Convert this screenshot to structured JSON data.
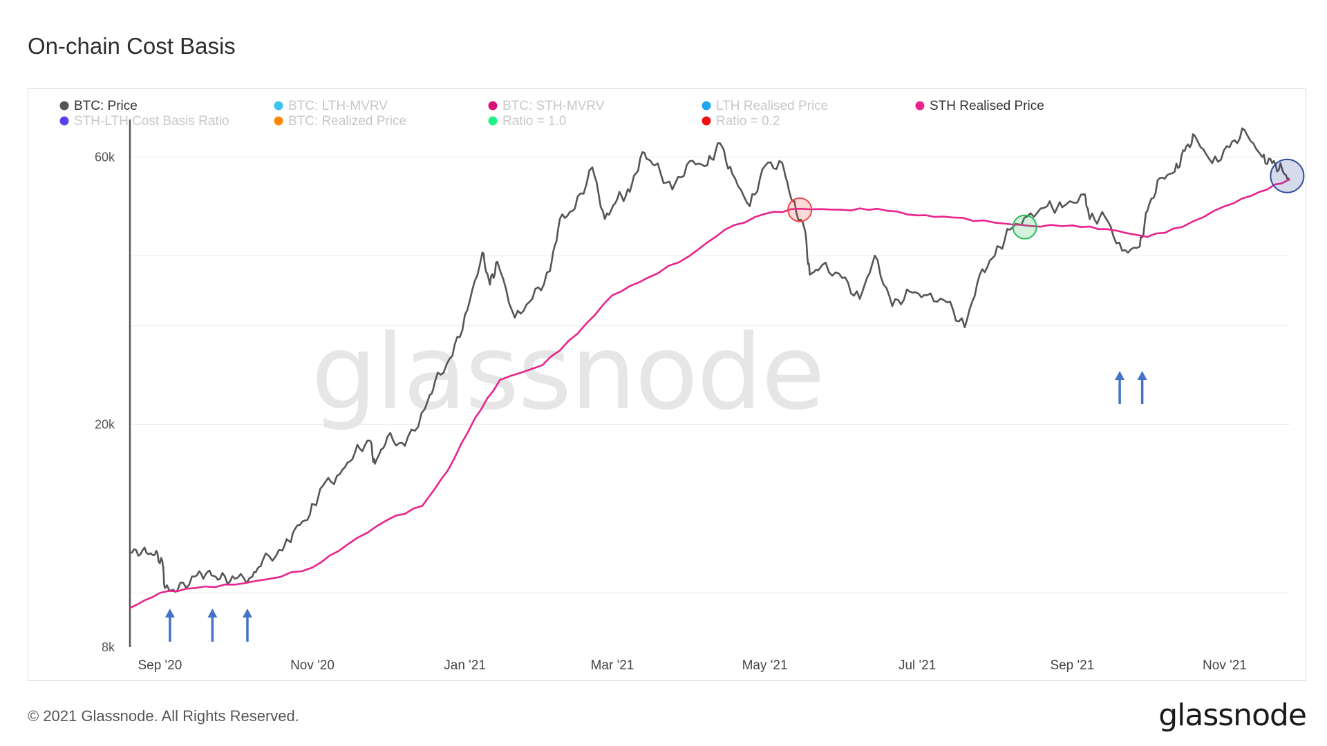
{
  "page": {
    "title": "On-chain Cost Basis",
    "copyright": "© 2021 Glassnode. All Rights Reserved.",
    "logo": "glassnode",
    "watermark": "glassnode"
  },
  "colors": {
    "price": "#555555",
    "sth_realised": "#e8238c",
    "grid": "#ececec",
    "arrow": "#4472c4",
    "marker_red": "#ee4444",
    "marker_green": "#22bb55",
    "marker_blue": "#2e4a9a"
  },
  "chart_data": {
    "type": "line",
    "title": "On-chain Cost Basis",
    "y_scale": "log",
    "ylim": [
      8000,
      70000
    ],
    "y_ticks": [
      {
        "value": 8000,
        "label": "8k"
      },
      {
        "value": 20000,
        "label": "20k"
      },
      {
        "value": 60000,
        "label": "60k"
      }
    ],
    "x_range": [
      "2020-08-20",
      "2021-11-27"
    ],
    "x_ticks": [
      {
        "date": "2020-09-01",
        "label": "Sep '20"
      },
      {
        "date": "2020-11-01",
        "label": "Nov '20"
      },
      {
        "date": "2021-01-01",
        "label": "Jan '21"
      },
      {
        "date": "2021-03-01",
        "label": "Mar '21"
      },
      {
        "date": "2021-05-01",
        "label": "May '21"
      },
      {
        "date": "2021-07-01",
        "label": "Jul '21"
      },
      {
        "date": "2021-09-01",
        "label": "Sep '21"
      },
      {
        "date": "2021-11-01",
        "label": "Nov '21"
      }
    ],
    "legend": [
      {
        "name": "BTC: Price",
        "color": "#555555",
        "active": true
      },
      {
        "name": "BTC: LTH-MVRV",
        "color": "#3cc3f0",
        "active": false
      },
      {
        "name": "BTC: STH-MVRV",
        "color": "#d6127a",
        "active": false
      },
      {
        "name": "LTH Realised Price",
        "color": "#1ea7f0",
        "active": false
      },
      {
        "name": "STH Realised Price",
        "color": "#e8238c",
        "active": true
      },
      {
        "name": "STH-LTH Cost Basis Ratio",
        "color": "#5544ee",
        "active": false
      },
      {
        "name": "BTC: Realized Price",
        "color": "#ff8800",
        "active": false
      },
      {
        "name": "Ratio = 1.0",
        "color": "#22ee88",
        "active": false
      },
      {
        "name": "Ratio = 0.2",
        "color": "#ee1111",
        "active": false
      }
    ],
    "series": [
      {
        "name": "BTC: Price",
        "points": [
          [
            "2020-08-20",
            11800
          ],
          [
            "2020-08-25",
            11900
          ],
          [
            "2020-08-30",
            11700
          ],
          [
            "2020-09-02",
            11400
          ],
          [
            "2020-09-03",
            10200
          ],
          [
            "2020-09-08",
            10100
          ],
          [
            "2020-09-15",
            10700
          ],
          [
            "2020-09-20",
            10900
          ],
          [
            "2020-09-25",
            10600
          ],
          [
            "2020-10-01",
            10600
          ],
          [
            "2020-10-08",
            10700
          ],
          [
            "2020-10-12",
            11400
          ],
          [
            "2020-10-20",
            11900
          ],
          [
            "2020-10-25",
            13000
          ],
          [
            "2020-10-31",
            13800
          ],
          [
            "2020-11-05",
            15500
          ],
          [
            "2020-11-12",
            16300
          ],
          [
            "2020-11-18",
            17800
          ],
          [
            "2020-11-24",
            18700
          ],
          [
            "2020-11-26",
            17000
          ],
          [
            "2020-12-01",
            19000
          ],
          [
            "2020-12-08",
            18300
          ],
          [
            "2020-12-16",
            21300
          ],
          [
            "2020-12-20",
            23800
          ],
          [
            "2020-12-27",
            26500
          ],
          [
            "2021-01-02",
            32000
          ],
          [
            "2021-01-08",
            40500
          ],
          [
            "2021-01-11",
            35500
          ],
          [
            "2021-01-14",
            39000
          ],
          [
            "2021-01-21",
            31000
          ],
          [
            "2021-01-28",
            33500
          ],
          [
            "2021-02-04",
            37500
          ],
          [
            "2021-02-08",
            46500
          ],
          [
            "2021-02-14",
            48500
          ],
          [
            "2021-02-21",
            57500
          ],
          [
            "2021-02-26",
            46500
          ],
          [
            "2021-03-03",
            50500
          ],
          [
            "2021-03-08",
            52000
          ],
          [
            "2021-03-13",
            61200
          ],
          [
            "2021-03-18",
            58000
          ],
          [
            "2021-03-25",
            52500
          ],
          [
            "2021-04-01",
            59000
          ],
          [
            "2021-04-08",
            58000
          ],
          [
            "2021-04-13",
            63500
          ],
          [
            "2021-04-18",
            56000
          ],
          [
            "2021-04-25",
            49000
          ],
          [
            "2021-05-01",
            57800
          ],
          [
            "2021-05-08",
            58500
          ],
          [
            "2021-05-12",
            50000
          ],
          [
            "2021-05-17",
            44500
          ],
          [
            "2021-05-19",
            37000
          ],
          [
            "2021-05-24",
            38500
          ],
          [
            "2021-06-01",
            36500
          ],
          [
            "2021-06-08",
            33500
          ],
          [
            "2021-06-14",
            40000
          ],
          [
            "2021-06-21",
            32500
          ],
          [
            "2021-06-28",
            34500
          ],
          [
            "2021-07-05",
            34000
          ],
          [
            "2021-07-13",
            33000
          ],
          [
            "2021-07-20",
            29800
          ],
          [
            "2021-07-26",
            37000
          ],
          [
            "2021-08-01",
            40000
          ],
          [
            "2021-08-07",
            44500
          ],
          [
            "2021-08-14",
            47000
          ],
          [
            "2021-08-22",
            49000
          ],
          [
            "2021-08-28",
            48800
          ],
          [
            "2021-09-06",
            51500
          ],
          [
            "2021-09-08",
            46500
          ],
          [
            "2021-09-14",
            47000
          ],
          [
            "2021-09-21",
            40800
          ],
          [
            "2021-09-28",
            41500
          ],
          [
            "2021-10-01",
            48000
          ],
          [
            "2021-10-06",
            55000
          ],
          [
            "2021-10-12",
            56500
          ],
          [
            "2021-10-16",
            61500
          ],
          [
            "2021-10-20",
            65500
          ],
          [
            "2021-10-27",
            58500
          ],
          [
            "2021-11-03",
            62500
          ],
          [
            "2021-11-09",
            67000
          ],
          [
            "2021-11-16",
            60000
          ],
          [
            "2021-11-20",
            58500
          ],
          [
            "2021-11-24",
            57000
          ],
          [
            "2021-11-27",
            54500
          ]
        ]
      },
      {
        "name": "STH Realised Price",
        "points": [
          [
            "2020-08-20",
            9400
          ],
          [
            "2020-09-01",
            10000
          ],
          [
            "2020-09-15",
            10200
          ],
          [
            "2020-10-01",
            10350
          ],
          [
            "2020-10-15",
            10600
          ],
          [
            "2020-11-01",
            11100
          ],
          [
            "2020-11-15",
            12200
          ],
          [
            "2020-12-01",
            13500
          ],
          [
            "2020-12-15",
            14300
          ],
          [
            "2020-12-25",
            16500
          ],
          [
            "2021-01-05",
            20500
          ],
          [
            "2021-01-15",
            24000
          ],
          [
            "2021-02-01",
            25500
          ],
          [
            "2021-02-15",
            29000
          ],
          [
            "2021-03-01",
            34000
          ],
          [
            "2021-03-15",
            36500
          ],
          [
            "2021-04-01",
            40000
          ],
          [
            "2021-04-15",
            44500
          ],
          [
            "2021-05-01",
            47500
          ],
          [
            "2021-05-15",
            48500
          ],
          [
            "2021-06-01",
            48300
          ],
          [
            "2021-06-15",
            48500
          ],
          [
            "2021-07-01",
            47200
          ],
          [
            "2021-07-15",
            46800
          ],
          [
            "2021-08-01",
            45800
          ],
          [
            "2021-08-15",
            45200
          ],
          [
            "2021-09-01",
            45300
          ],
          [
            "2021-09-15",
            44600
          ],
          [
            "2021-10-01",
            43200
          ],
          [
            "2021-10-15",
            45000
          ],
          [
            "2021-11-01",
            49000
          ],
          [
            "2021-11-15",
            52000
          ],
          [
            "2021-11-27",
            54800
          ]
        ]
      }
    ],
    "arrows": [
      "2020-09-05",
      "2020-09-22",
      "2020-10-06",
      "2021-09-20",
      "2021-09-29"
    ],
    "highlight_markers": [
      {
        "date": "2021-05-15",
        "value": 48300,
        "color": "#ee4444"
      },
      {
        "date": "2021-08-13",
        "value": 45000,
        "color": "#22bb55"
      },
      {
        "date": "2021-11-26",
        "value": 55500,
        "color": "#2e4a9a"
      }
    ]
  }
}
